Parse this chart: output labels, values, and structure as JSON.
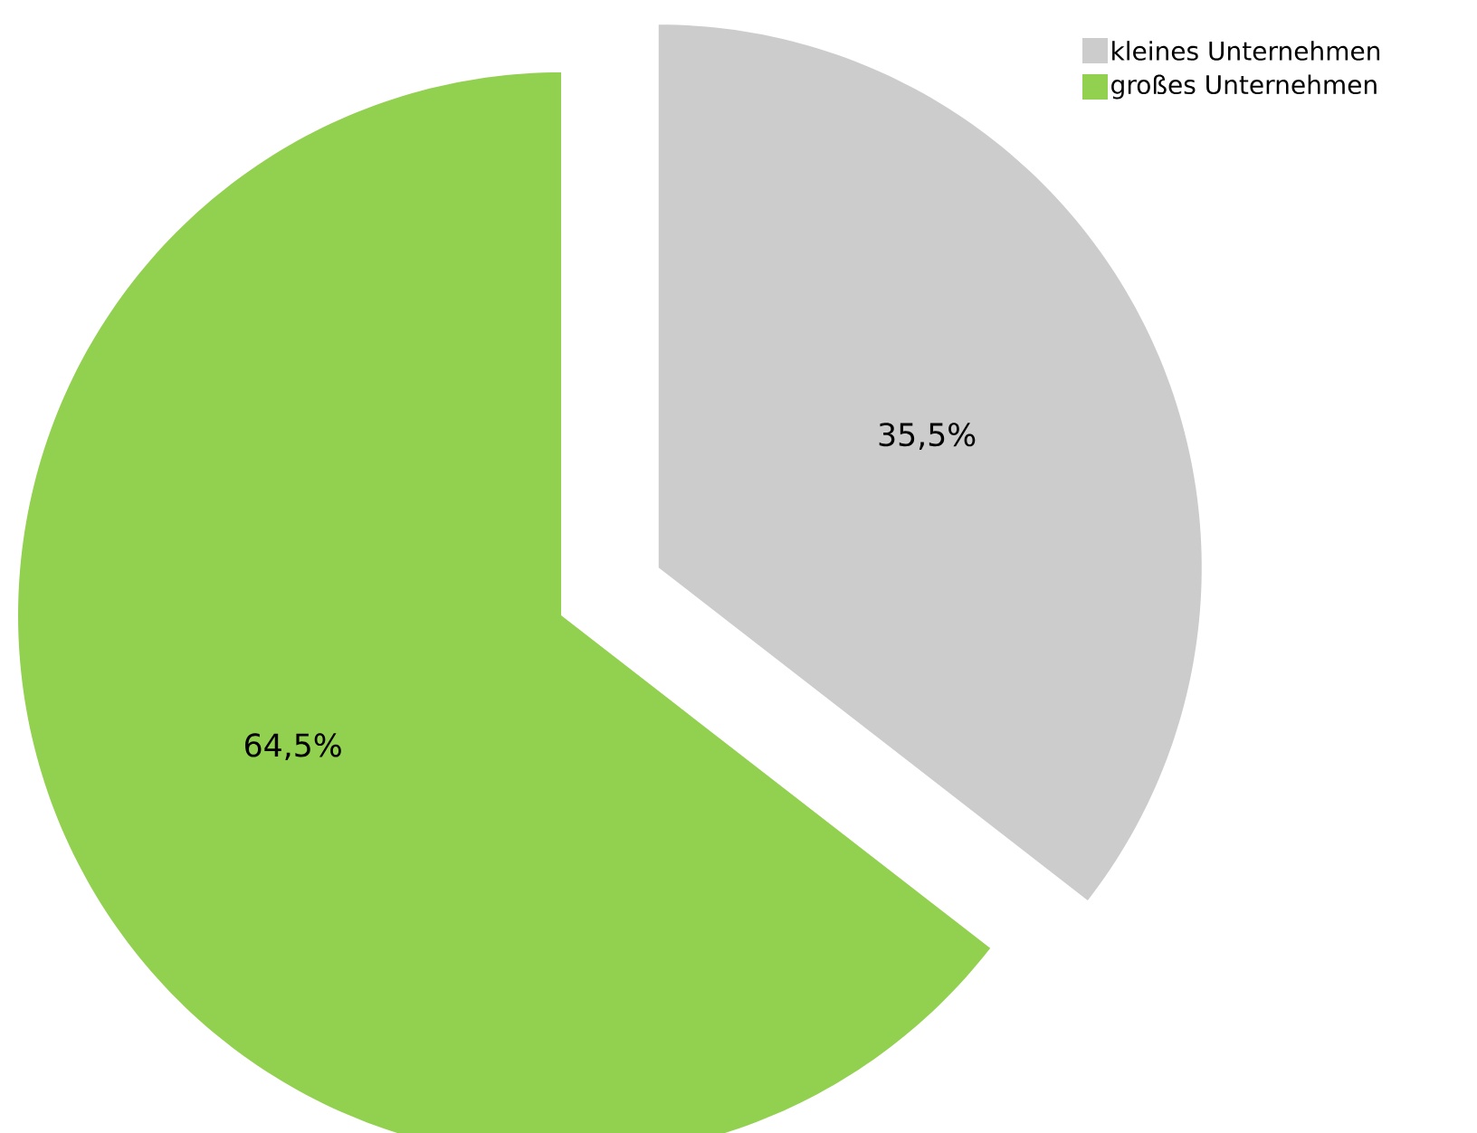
{
  "chart_data": {
    "type": "pie",
    "categories": [
      "kleines Unternehmen",
      "großes Unternehmen"
    ],
    "values": [
      35.5,
      64.5
    ],
    "colors": [
      "#cccccc",
      "#92d050"
    ],
    "value_labels": [
      "35,5%",
      "64,5%"
    ],
    "legend": "top right"
  }
}
